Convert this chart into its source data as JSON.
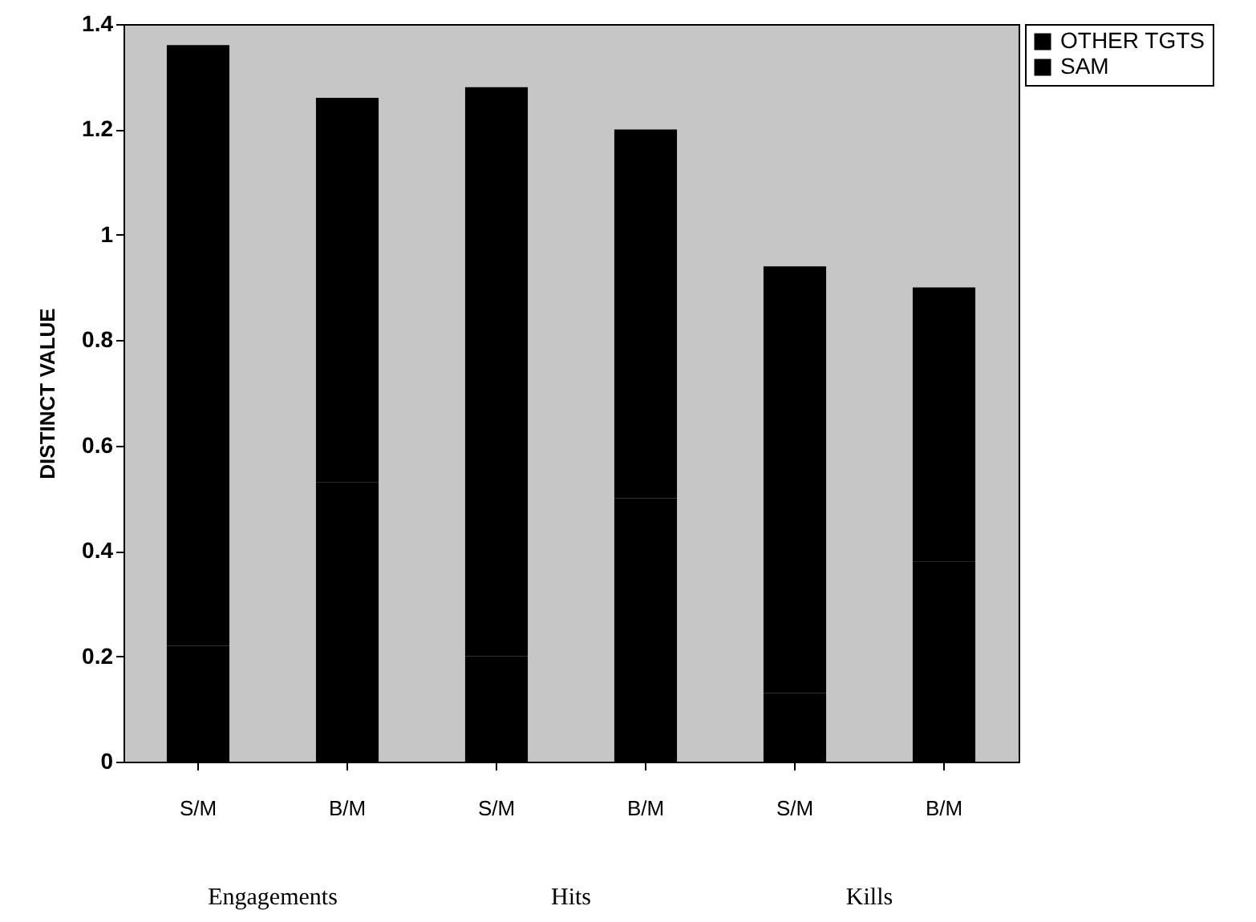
{
  "chart_data": {
    "type": "bar",
    "stacked": true,
    "categories": [
      "S/M",
      "B/M",
      "S/M",
      "B/M",
      "S/M",
      "B/M"
    ],
    "series": [
      {
        "name": "SAM",
        "color": "#000000",
        "values": [
          0.22,
          0.53,
          0.2,
          0.5,
          0.13,
          0.38
        ]
      },
      {
        "name": "OTHER TGTS",
        "color": "#000000",
        "values": [
          1.14,
          0.73,
          1.08,
          0.7,
          0.81,
          0.52
        ]
      }
    ],
    "ylabel": "DISTINCT VALUE",
    "ylim": [
      0,
      1.4
    ],
    "yticks": [
      0,
      0.2,
      0.4,
      0.6,
      0.8,
      1,
      1.2,
      1.4
    ],
    "legend": "right",
    "grid": false,
    "annotations": [
      "Engagements",
      "Hits",
      "Kills"
    ]
  }
}
